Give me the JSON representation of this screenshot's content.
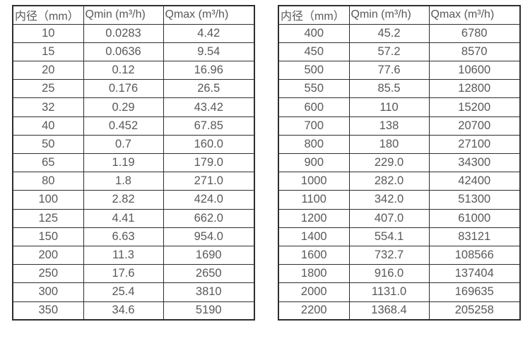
{
  "page": {
    "background_color": "#ffffff",
    "border_color": "#2e2e2e",
    "text_color": "#595959"
  },
  "tables": [
    {
      "title": "flow-table-small-diameters",
      "headers": [
        "内径（mm）",
        "Qmin (m³/h)",
        "Qmax (m³/h)"
      ],
      "rows": [
        [
          "10",
          "0.0283",
          "4.42"
        ],
        [
          "15",
          "0.0636",
          "9.54"
        ],
        [
          "20",
          "0.12",
          "16.96"
        ],
        [
          "25",
          "0.176",
          "26.5"
        ],
        [
          "32",
          "0.29",
          "43.42"
        ],
        [
          "40",
          "0.452",
          "67.85"
        ],
        [
          "50",
          "0.7",
          "160.0"
        ],
        [
          "65",
          "1.19",
          "179.0"
        ],
        [
          "80",
          "1.8",
          "271.0"
        ],
        [
          "100",
          "2.82",
          "424.0"
        ],
        [
          "125",
          "4.41",
          "662.0"
        ],
        [
          "150",
          "6.63",
          "954.0"
        ],
        [
          "200",
          "11.3",
          "1690"
        ],
        [
          "250",
          "17.6",
          "2650"
        ],
        [
          "300",
          "25.4",
          "3810"
        ],
        [
          "350",
          "34.6",
          "5190"
        ]
      ]
    },
    {
      "title": "flow-table-large-diameters",
      "headers": [
        "内径（mm）",
        "Qmin (m³/h)",
        "Qmax (m³/h)"
      ],
      "rows": [
        [
          "400",
          "45.2",
          "6780"
        ],
        [
          "450",
          "57.2",
          "8570"
        ],
        [
          "500",
          "77.6",
          "10600"
        ],
        [
          "550",
          "85.5",
          "12800"
        ],
        [
          "600",
          "110",
          "15200"
        ],
        [
          "700",
          "138",
          "20700"
        ],
        [
          "800",
          "180",
          "27100"
        ],
        [
          "900",
          "229.0",
          "34300"
        ],
        [
          "1000",
          "282.0",
          "42400"
        ],
        [
          "1100",
          "342.0",
          "51300"
        ],
        [
          "1200",
          "407.0",
          "61000"
        ],
        [
          "1400",
          "554.1",
          "83121"
        ],
        [
          "1600",
          "732.7",
          "108566"
        ],
        [
          "1800",
          "916.0",
          "137404"
        ],
        [
          "2000",
          "1131.0",
          "169635"
        ],
        [
          "2200",
          "1368.4",
          "205258"
        ]
      ]
    }
  ]
}
